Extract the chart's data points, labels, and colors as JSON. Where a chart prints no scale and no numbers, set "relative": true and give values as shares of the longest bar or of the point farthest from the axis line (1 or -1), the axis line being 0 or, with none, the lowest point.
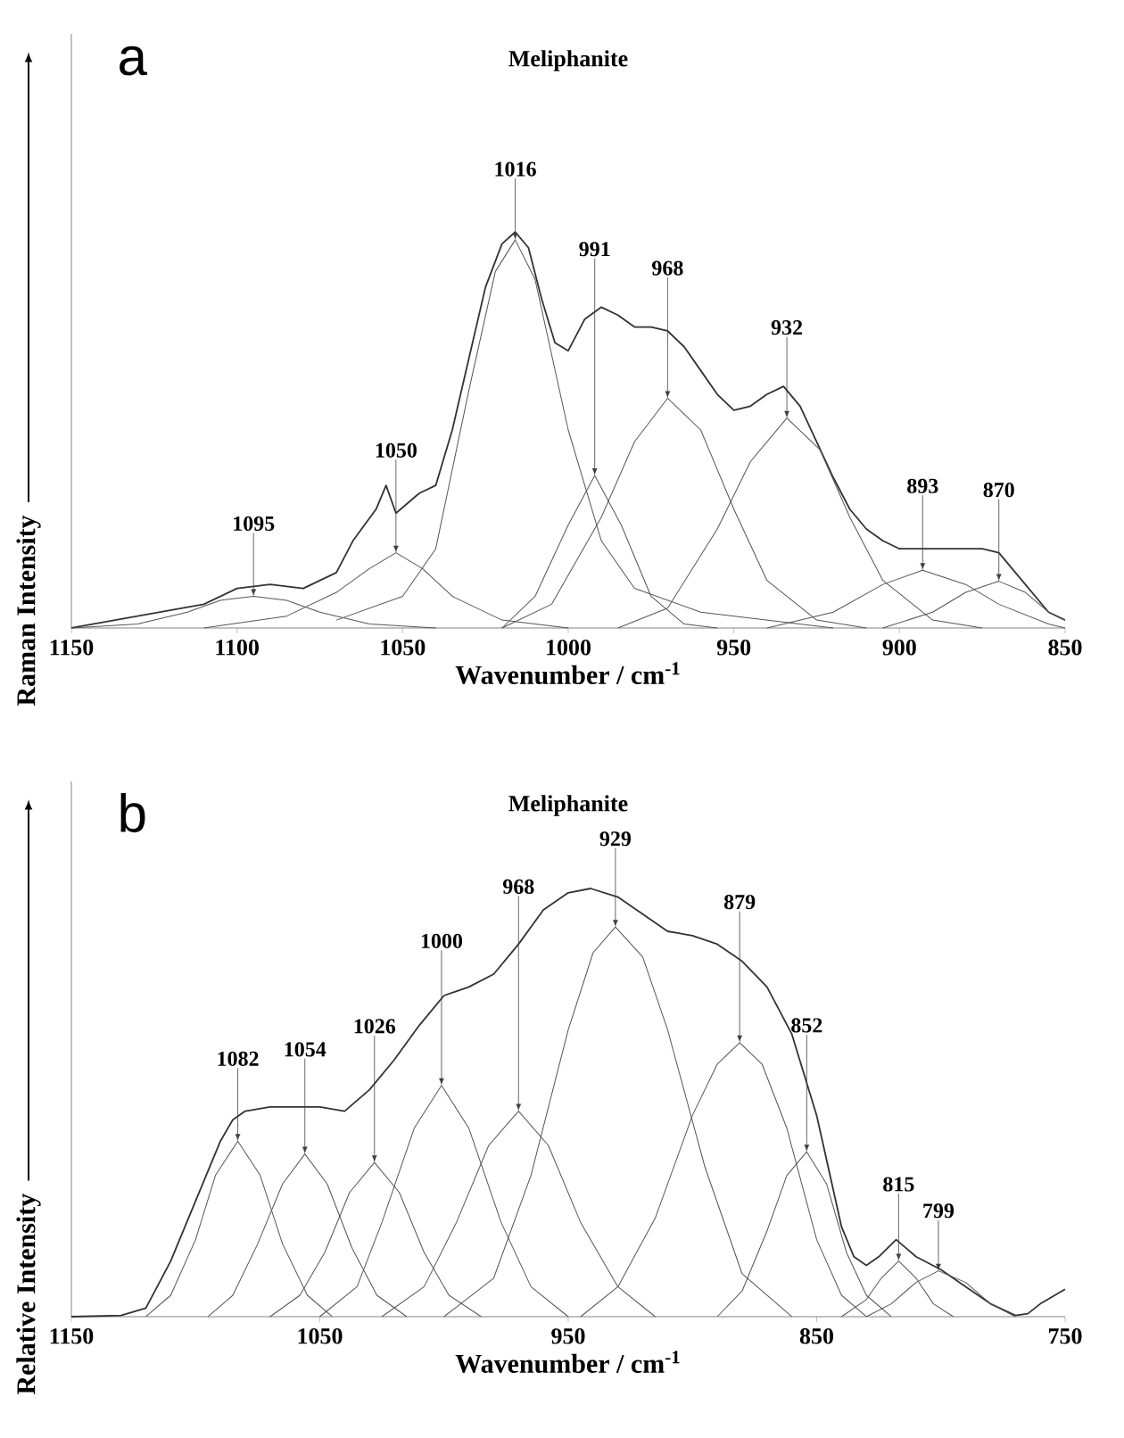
{
  "chart_data": [
    {
      "type": "line",
      "title": "Meliphanite",
      "xlabel": "Wavenumber / cm$^{-1}$",
      "ylabel": "Raman Intensity",
      "relative": true,
      "xlim": [
        1150,
        850
      ],
      "xticks": [
        1150,
        1100,
        1050,
        1000,
        950,
        900,
        850
      ],
      "series": [
        {
          "color": "#333333",
          "x": [
            1150,
            1130,
            1110,
            1100,
            1090,
            1080,
            1070,
            1065,
            1058,
            1055,
            1052,
            1045,
            1040,
            1035,
            1030,
            1025,
            1020,
            1016,
            1012,
            1008,
            1004,
            1000,
            995,
            990,
            985,
            980,
            975,
            970,
            965,
            960,
            955,
            950,
            945,
            940,
            935,
            930,
            925,
            920,
            915,
            910,
            905,
            900,
            890,
            880,
            875,
            870,
            865,
            860,
            855,
            850
          ],
          "values": [
            0,
            0.03,
            0.06,
            0.1,
            0.11,
            0.1,
            0.14,
            0.22,
            0.3,
            0.36,
            0.29,
            0.34,
            0.36,
            0.5,
            0.68,
            0.86,
            0.97,
            1.0,
            0.96,
            0.83,
            0.72,
            0.7,
            0.78,
            0.81,
            0.79,
            0.76,
            0.76,
            0.75,
            0.71,
            0.65,
            0.59,
            0.55,
            0.56,
            0.59,
            0.61,
            0.56,
            0.47,
            0.38,
            0.3,
            0.25,
            0.22,
            0.2,
            0.2,
            0.2,
            0.2,
            0.19,
            0.14,
            0.09,
            0.04,
            0.02
          ]
        },
        {
          "color": "#555555",
          "x": [
            1150,
            1130,
            1115,
            1105,
            1095,
            1085,
            1075,
            1060,
            1040
          ],
          "values": [
            0,
            0.01,
            0.04,
            0.07,
            0.08,
            0.07,
            0.04,
            0.01,
            0
          ]
        },
        {
          "color": "#555555",
          "x": [
            1110,
            1085,
            1070,
            1060,
            1052,
            1044,
            1035,
            1020,
            1000
          ],
          "values": [
            0,
            0.03,
            0.09,
            0.15,
            0.19,
            0.15,
            0.08,
            0.02,
            0
          ]
        },
        {
          "color": "#555555",
          "x": [
            1070,
            1050,
            1040,
            1030,
            1022,
            1016,
            1010,
            1000,
            990,
            980,
            960,
            940,
            920
          ],
          "values": [
            0.02,
            0.08,
            0.2,
            0.6,
            0.9,
            0.98,
            0.88,
            0.5,
            0.22,
            0.1,
            0.04,
            0.02,
            0
          ]
        },
        {
          "color": "#555555",
          "x": [
            1020,
            1010,
            1000,
            992,
            984,
            975,
            965,
            955
          ],
          "values": [
            0,
            0.08,
            0.26,
            0.385,
            0.26,
            0.08,
            0.01,
            0
          ]
        },
        {
          "color": "#555555",
          "x": [
            1020,
            1005,
            990,
            980,
            970,
            960,
            950,
            940,
            925,
            910
          ],
          "values": [
            0,
            0.06,
            0.28,
            0.47,
            0.58,
            0.5,
            0.3,
            0.12,
            0.02,
            0
          ]
        },
        {
          "color": "#555555",
          "x": [
            985,
            970,
            955,
            945,
            934,
            924,
            915,
            905,
            890,
            875
          ],
          "values": [
            0,
            0.05,
            0.25,
            0.42,
            0.53,
            0.45,
            0.28,
            0.12,
            0.02,
            0
          ]
        },
        {
          "color": "#555555",
          "x": [
            940,
            920,
            905,
            893,
            880,
            870,
            855,
            850
          ],
          "values": [
            0,
            0.04,
            0.11,
            0.146,
            0.11,
            0.06,
            0.01,
            0
          ]
        },
        {
          "color": "#555555",
          "x": [
            905,
            890,
            880,
            870,
            862,
            855,
            850
          ],
          "values": [
            0,
            0.04,
            0.09,
            0.118,
            0.09,
            0.04,
            0.02
          ]
        }
      ],
      "annotations": [
        "a",
        {
          "text": "1095",
          "x": 1095,
          "y": 0.08
        },
        {
          "text": "1050",
          "x": 1052,
          "y": 0.19
        },
        {
          "text": "1016",
          "x": 1016,
          "y": 0.98
        },
        {
          "text": "991",
          "x": 992,
          "y": 0.385
        },
        {
          "text": "968",
          "x": 970,
          "y": 0.58
        },
        {
          "text": "932",
          "x": 934,
          "y": 0.53
        },
        {
          "text": "893",
          "x": 893,
          "y": 0.146
        },
        {
          "text": "870",
          "x": 870,
          "y": 0.118
        }
      ]
    },
    {
      "type": "line",
      "title": "Meliphanite",
      "xlabel": "Wavenumber / cm$^{-1}$",
      "ylabel": "Relative Intensity",
      "relative": true,
      "xlim": [
        1150,
        750
      ],
      "xticks": [
        1150,
        1050,
        950,
        850,
        750
      ],
      "series": [
        {
          "color": "#333333",
          "x": [
            1150,
            1130,
            1120,
            1110,
            1100,
            1090,
            1085,
            1080,
            1070,
            1060,
            1050,
            1040,
            1030,
            1020,
            1010,
            1000,
            990,
            980,
            970,
            960,
            950,
            941,
            930,
            920,
            910,
            900,
            890,
            880,
            870,
            860,
            850,
            845,
            840,
            835,
            830,
            825,
            818,
            810,
            800,
            790,
            780,
            770,
            765,
            760,
            750
          ],
          "values": [
            0,
            0.003,
            0.02,
            0.13,
            0.27,
            0.41,
            0.46,
            0.48,
            0.49,
            0.49,
            0.49,
            0.48,
            0.53,
            0.6,
            0.68,
            0.75,
            0.77,
            0.8,
            0.87,
            0.95,
            0.99,
            1.0,
            0.98,
            0.94,
            0.9,
            0.89,
            0.87,
            0.83,
            0.77,
            0.66,
            0.47,
            0.34,
            0.21,
            0.14,
            0.12,
            0.14,
            0.18,
            0.14,
            0.11,
            0.07,
            0.03,
            0.003,
            0.007,
            0.03,
            0.064
          ]
        },
        {
          "color": "#555555",
          "x": [
            1120,
            1110,
            1100,
            1092,
            1083,
            1074,
            1065,
            1055,
            1045
          ],
          "values": [
            0,
            0.05,
            0.18,
            0.33,
            0.41,
            0.33,
            0.17,
            0.05,
            0
          ]
        },
        {
          "color": "#555555",
          "x": [
            1095,
            1085,
            1075,
            1065,
            1056,
            1047,
            1037,
            1027,
            1015
          ],
          "values": [
            0,
            0.05,
            0.17,
            0.31,
            0.38,
            0.31,
            0.16,
            0.05,
            0
          ]
        },
        {
          "color": "#555555",
          "x": [
            1070,
            1058,
            1048,
            1038,
            1028,
            1018,
            1008,
            998,
            985
          ],
          "values": [
            0,
            0.05,
            0.15,
            0.29,
            0.36,
            0.29,
            0.15,
            0.05,
            0
          ]
        },
        {
          "color": "#555555",
          "x": [
            1050,
            1035,
            1025,
            1012,
            1001,
            990,
            977,
            965,
            950
          ],
          "values": [
            0,
            0.07,
            0.22,
            0.44,
            0.54,
            0.44,
            0.22,
            0.07,
            0
          ]
        },
        {
          "color": "#555555",
          "x": [
            1025,
            1008,
            995,
            982,
            970,
            958,
            945,
            930,
            915
          ],
          "values": [
            0,
            0.07,
            0.22,
            0.4,
            0.48,
            0.4,
            0.22,
            0.07,
            0
          ]
        },
        {
          "color": "#555555",
          "x": [
            1000,
            980,
            965,
            950,
            940,
            931,
            920,
            910,
            895,
            880,
            860
          ],
          "values": [
            0,
            0.09,
            0.33,
            0.67,
            0.85,
            0.91,
            0.84,
            0.67,
            0.35,
            0.1,
            0
          ]
        },
        {
          "color": "#555555",
          "x": [
            945,
            930,
            915,
            900,
            890,
            881,
            872,
            862,
            850,
            840,
            830
          ],
          "values": [
            0,
            0.07,
            0.23,
            0.47,
            0.59,
            0.64,
            0.59,
            0.44,
            0.18,
            0.05,
            0
          ]
        },
        {
          "color": "#555555",
          "x": [
            890,
            880,
            870,
            862,
            854,
            846,
            838,
            830,
            820
          ],
          "values": [
            0,
            0.06,
            0.2,
            0.33,
            0.385,
            0.31,
            0.15,
            0.05,
            0
          ]
        },
        {
          "color": "#555555",
          "x": [
            840,
            830,
            824,
            817,
            810,
            803,
            795
          ],
          "values": [
            0,
            0.04,
            0.09,
            0.13,
            0.09,
            0.03,
            0
          ]
        },
        {
          "color": "#555555",
          "x": [
            830,
            820,
            810,
            801,
            790,
            780,
            770
          ],
          "values": [
            0,
            0.03,
            0.08,
            0.107,
            0.08,
            0.03,
            0
          ]
        }
      ],
      "annotations": [
        "b",
        {
          "text": "1082",
          "x": 1083,
          "y": 0.41
        },
        {
          "text": "1054",
          "x": 1056,
          "y": 0.38
        },
        {
          "text": "1026",
          "x": 1028,
          "y": 0.36
        },
        {
          "text": "1000",
          "x": 1001,
          "y": 0.54
        },
        {
          "text": "968",
          "x": 970,
          "y": 0.48
        },
        {
          "text": "929",
          "x": 931,
          "y": 0.91
        },
        {
          "text": "879",
          "x": 881,
          "y": 0.64
        },
        {
          "text": "852",
          "x": 854,
          "y": 0.385
        },
        {
          "text": "815",
          "x": 817,
          "y": 0.13
        },
        {
          "text": "799",
          "x": 801,
          "y": 0.107
        }
      ]
    }
  ]
}
